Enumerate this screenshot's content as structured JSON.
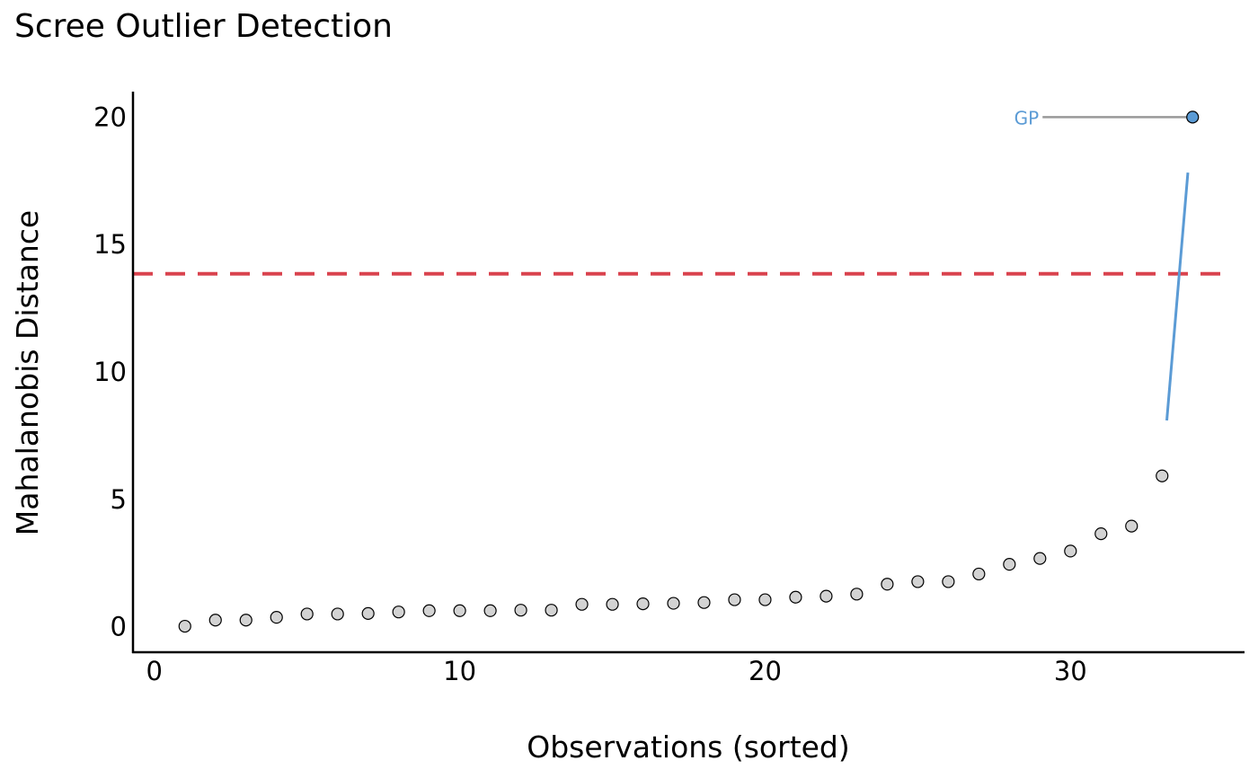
{
  "chart_data": {
    "type": "scatter",
    "title": "Scree Outlier Detection",
    "xlabel": "Observations (sorted)",
    "ylabel": "Mahalanobis Distance",
    "xlim": [
      -0.7,
      35.7
    ],
    "ylim": [
      -1,
      21
    ],
    "xticks": [
      0,
      10,
      20,
      30
    ],
    "yticks": [
      0,
      5,
      10,
      15,
      20
    ],
    "grid": false,
    "threshold": 13.85,
    "points": [
      {
        "x": 1,
        "y": 0.02
      },
      {
        "x": 2,
        "y": 0.26
      },
      {
        "x": 3,
        "y": 0.26
      },
      {
        "x": 4,
        "y": 0.37
      },
      {
        "x": 5,
        "y": 0.5
      },
      {
        "x": 6,
        "y": 0.5
      },
      {
        "x": 7,
        "y": 0.52
      },
      {
        "x": 8,
        "y": 0.58
      },
      {
        "x": 9,
        "y": 0.63
      },
      {
        "x": 10,
        "y": 0.63
      },
      {
        "x": 11,
        "y": 0.63
      },
      {
        "x": 12,
        "y": 0.65
      },
      {
        "x": 13,
        "y": 0.65
      },
      {
        "x": 14,
        "y": 0.88
      },
      {
        "x": 15,
        "y": 0.88
      },
      {
        "x": 16,
        "y": 0.9
      },
      {
        "x": 17,
        "y": 0.92
      },
      {
        "x": 18,
        "y": 0.95
      },
      {
        "x": 19,
        "y": 1.06
      },
      {
        "x": 20,
        "y": 1.06
      },
      {
        "x": 21,
        "y": 1.16
      },
      {
        "x": 22,
        "y": 1.2
      },
      {
        "x": 23,
        "y": 1.28
      },
      {
        "x": 24,
        "y": 1.67
      },
      {
        "x": 25,
        "y": 1.77
      },
      {
        "x": 26,
        "y": 1.77
      },
      {
        "x": 27,
        "y": 2.07
      },
      {
        "x": 28,
        "y": 2.45
      },
      {
        "x": 29,
        "y": 2.68
      },
      {
        "x": 30,
        "y": 2.97
      },
      {
        "x": 31,
        "y": 3.65
      },
      {
        "x": 32,
        "y": 3.95
      },
      {
        "x": 33,
        "y": 5.92
      },
      {
        "x": 34,
        "y": 20.0,
        "label": "GP",
        "outlier": true
      }
    ],
    "colors": {
      "point_fill": "#d3d3d3",
      "point_stroke": "#000000",
      "outlier_fill": "#5b9bd5",
      "outlier_label": "#5b9bd5",
      "threshold_line": "#d9434e",
      "label_leader": "#999999",
      "scree_segment": "#5b9bd5"
    }
  }
}
